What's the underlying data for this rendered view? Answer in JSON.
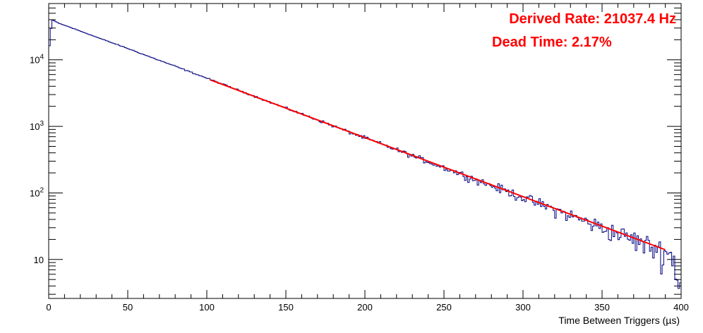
{
  "chart_data": {
    "type": "line",
    "title": "",
    "xlabel": "Time Between Triggers (µs)",
    "ylabel": "",
    "xlim": [
      0,
      400
    ],
    "ylim": [
      2.6,
      70000
    ],
    "yscale": "log",
    "grid": false,
    "legend": "none",
    "x_ticks": [
      0,
      50,
      100,
      150,
      200,
      250,
      300,
      350,
      400
    ],
    "x_tick_labels": [
      "0",
      "50",
      "100",
      "150",
      "200",
      "250",
      "300",
      "350",
      "400"
    ],
    "y_ticks": [
      10,
      100,
      1000,
      10000
    ],
    "y_tick_labels": [
      {
        "base": "10",
        "exp": ""
      },
      {
        "base": "10",
        "exp": "2"
      },
      {
        "base": "10",
        "exp": "3"
      },
      {
        "base": "10",
        "exp": "4"
      }
    ],
    "series": [
      {
        "kind": "histogram",
        "color": "#000080",
        "x": [
          0,
          2,
          4,
          6,
          10,
          20,
          30,
          40,
          50,
          60,
          70,
          80,
          90,
          100,
          110,
          120,
          130,
          140,
          150,
          160,
          170,
          180,
          190,
          200,
          210,
          220,
          230,
          240,
          250,
          260,
          270,
          280,
          290,
          300,
          310,
          320,
          330,
          340,
          350,
          360,
          370,
          380,
          390,
          395,
          399
        ],
        "y": [
          12000,
          40000,
          38000,
          35500,
          33000,
          27000,
          22000,
          18000,
          14800,
          12000,
          9800,
          8000,
          6500,
          5300,
          4300,
          3500,
          2850,
          2300,
          1880,
          1530,
          1250,
          1010,
          820,
          670,
          545,
          445,
          360,
          295,
          240,
          195,
          158,
          129,
          105,
          85,
          69,
          56,
          46,
          37,
          30,
          24.5,
          20,
          16,
          13,
          11,
          4
        ]
      },
      {
        "kind": "fit",
        "color": "#ff0000",
        "x": [
          102,
          390
        ],
        "y": [
          5000,
          14
        ]
      }
    ],
    "annotations": [
      {
        "text": "Derived Rate: 21037.4 Hz",
        "color": "#ff0000"
      },
      {
        "text": "Dead Time: 2.17%",
        "color": "#ff0000"
      }
    ]
  }
}
